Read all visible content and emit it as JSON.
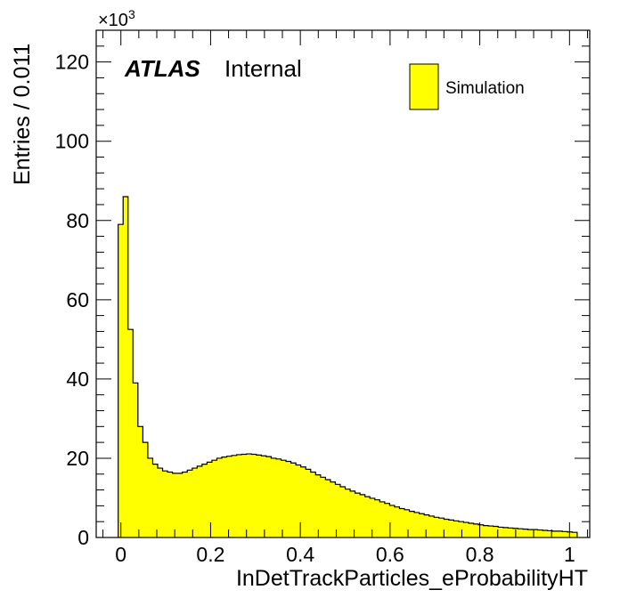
{
  "chart_data": {
    "type": "histogram",
    "xlabel": "InDetTrackParticles_eProbabilityHT",
    "ylabel": "Entries / 0.011",
    "y_scale_label": "×10",
    "y_scale_exp": "3",
    "atlas_label": "ATLAS",
    "atlas_status": "Internal",
    "legend": [
      {
        "label": "Simulation",
        "color": "#ffff00"
      }
    ],
    "xlim": [
      -0.055,
      1.045
    ],
    "ylim": [
      0,
      128
    ],
    "x_ticks": [
      0,
      0.2,
      0.4,
      0.6,
      0.8,
      1
    ],
    "x_tick_labels": [
      "0",
      "0.2",
      "0.4",
      "0.6",
      "0.8",
      "1"
    ],
    "y_ticks": [
      0,
      20,
      40,
      60,
      80,
      100,
      120
    ],
    "y_tick_labels": [
      "0",
      "20",
      "40",
      "60",
      "80",
      "100",
      "120"
    ],
    "bin_width": 0.011,
    "bins_start": -0.006,
    "values": [
      79,
      86,
      52.5,
      39,
      28,
      24,
      20,
      18.5,
      17.5,
      16.8,
      16.5,
      16.2,
      16.2,
      16.5,
      17.0,
      17.5,
      18.0,
      18.5,
      19.0,
      19.5,
      20.0,
      20.3,
      20.5,
      20.7,
      20.9,
      21.0,
      21.1,
      21.0,
      20.8,
      20.6,
      20.4,
      20.0,
      19.8,
      19.5,
      19.2,
      18.8,
      18.3,
      17.8,
      17.2,
      16.5,
      15.8,
      15.2,
      14.6,
      14.0,
      13.4,
      12.8,
      12.2,
      11.7,
      11.2,
      10.8,
      10.3,
      9.9,
      9.5,
      9.0,
      8.6,
      8.1,
      7.7,
      7.3,
      7.0,
      6.6,
      6.3,
      6.0,
      5.7,
      5.4,
      5.1,
      4.9,
      4.6,
      4.4,
      4.2,
      4.0,
      3.8,
      3.6,
      3.4,
      3.2,
      3.0,
      2.9,
      2.8,
      2.6,
      2.5,
      2.4,
      2.3,
      2.2,
      2.1,
      2.0,
      2.0,
      1.9,
      1.8,
      1.7,
      1.6,
      1.6,
      1.5,
      1.4,
      1.3
    ],
    "fill_color": "#ffff00",
    "line_color": "#000000",
    "grid": false,
    "legend_position": "top-right"
  }
}
